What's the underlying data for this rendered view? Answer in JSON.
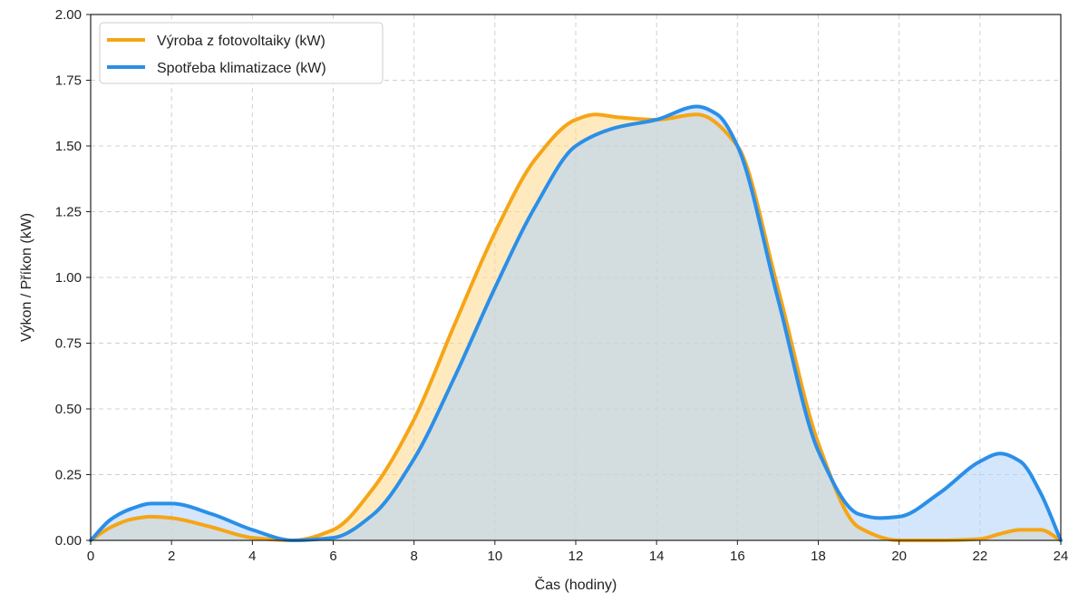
{
  "chart_data": {
    "type": "area",
    "title": "",
    "xlabel": "Čas (hodiny)",
    "ylabel": "Výkon / Příkon (kW)",
    "xlim": [
      0,
      24
    ],
    "ylim": [
      0,
      2.0
    ],
    "grid": true,
    "legend_position": "top-left",
    "x_ticks": [
      0,
      2,
      4,
      6,
      8,
      10,
      12,
      14,
      16,
      18,
      20,
      22,
      24
    ],
    "x_tick_labels": [
      "0",
      "2",
      "4",
      "6",
      "8",
      "10",
      "12",
      "14",
      "16",
      "18",
      "20",
      "22",
      "24"
    ],
    "y_ticks": [
      0,
      0.25,
      0.5,
      0.75,
      1.0,
      1.25,
      1.5,
      1.75,
      2.0
    ],
    "y_tick_labels": [
      "0.00",
      "0.25",
      "0.50",
      "0.75",
      "1.00",
      "1.25",
      "1.50",
      "1.75",
      "2.00"
    ],
    "series": [
      {
        "name": "Výroba z fotovoltaiky (kW)",
        "color": "#F5A516",
        "fill_color": "#FFD98A",
        "x": [
          0,
          0.5,
          1,
          1.5,
          2,
          3,
          4,
          5,
          6,
          7,
          8,
          9,
          10,
          11,
          12,
          12.5,
          13,
          14,
          15,
          16,
          17,
          18,
          19,
          20,
          21,
          22,
          22.5,
          23,
          23.5,
          24
        ],
        "values": [
          0,
          0.05,
          0.08,
          0.09,
          0.085,
          0.05,
          0.01,
          0,
          0.04,
          0.2,
          0.46,
          0.82,
          1.17,
          1.45,
          1.6,
          1.62,
          1.61,
          1.6,
          1.62,
          1.5,
          0.96,
          0.37,
          0.05,
          0,
          0,
          0.005,
          0.025,
          0.04,
          0.04,
          0
        ]
      },
      {
        "name": "Spotřeba klimatizace (kW)",
        "color": "#2B8FE8",
        "fill_color": "#AED2FA",
        "x": [
          0,
          0.5,
          1,
          1.5,
          2,
          3,
          4,
          5,
          6,
          7,
          8,
          9,
          10,
          11,
          12,
          13,
          14,
          15,
          15.5,
          16,
          17,
          18,
          19,
          19.5,
          20,
          21,
          22,
          22.5,
          23,
          23.5,
          24
        ],
        "values": [
          0,
          0.08,
          0.12,
          0.14,
          0.14,
          0.1,
          0.04,
          0,
          0.01,
          0.1,
          0.31,
          0.62,
          0.96,
          1.27,
          1.5,
          1.57,
          1.6,
          1.65,
          1.62,
          1.5,
          0.92,
          0.34,
          0.1,
          0.085,
          0.09,
          0.18,
          0.3,
          0.33,
          0.3,
          0.18,
          0
        ]
      }
    ]
  }
}
